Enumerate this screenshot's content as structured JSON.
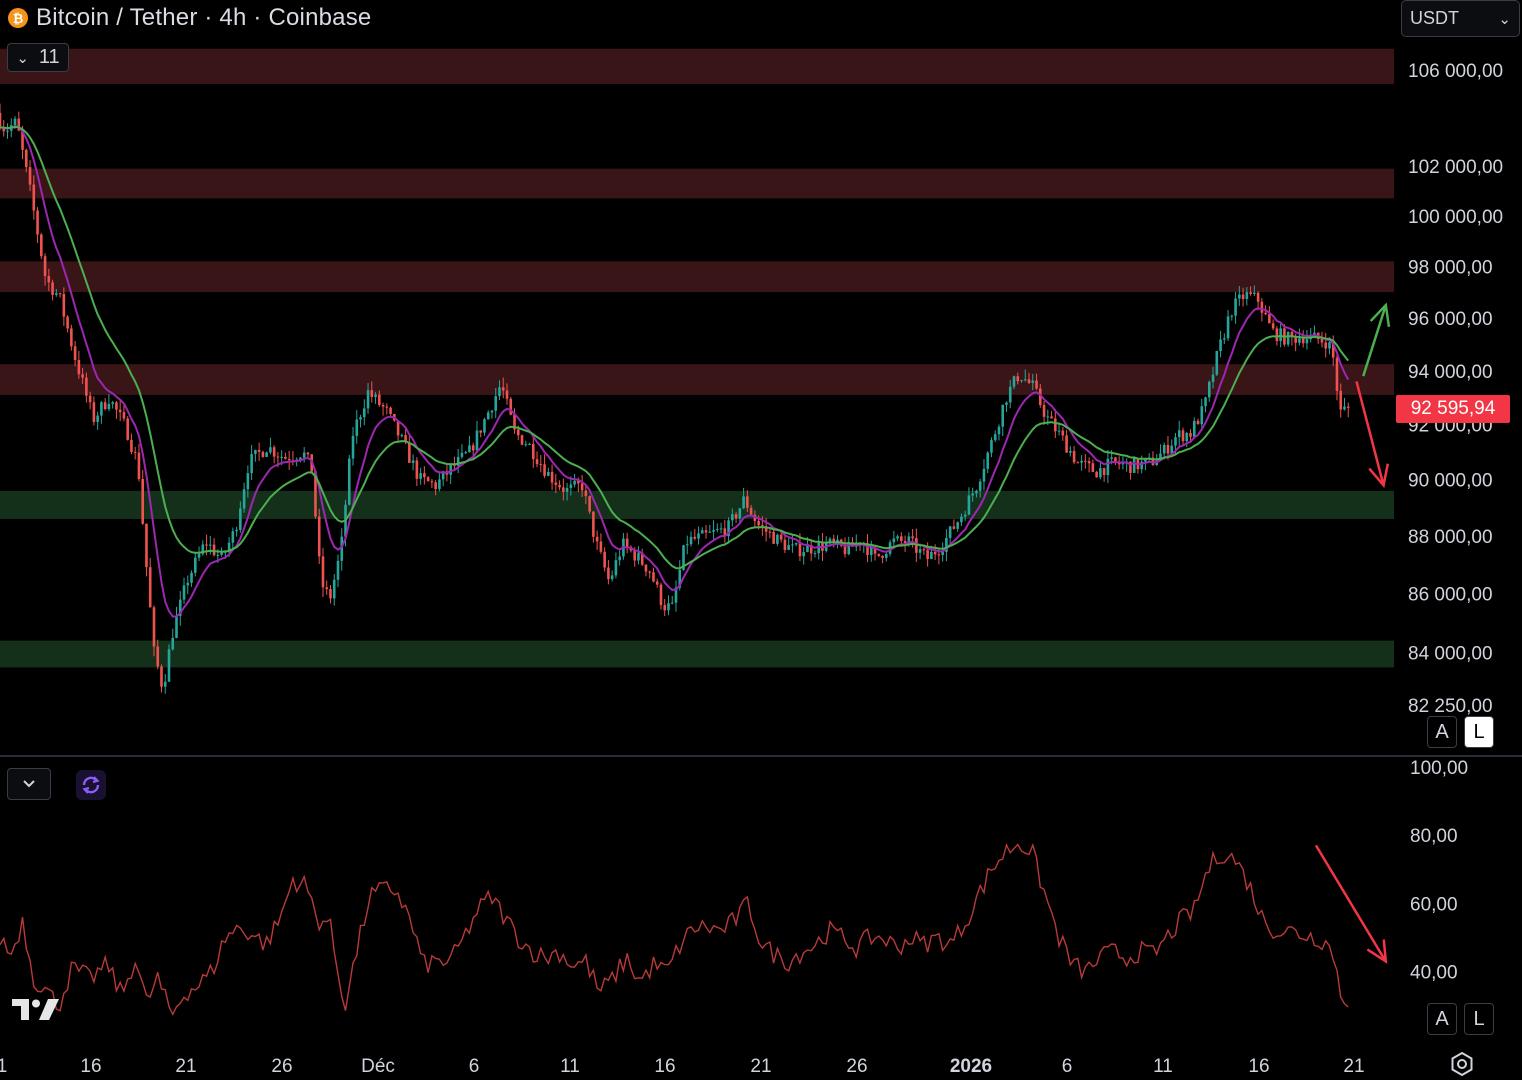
{
  "header": {
    "title": "Bitcoin / Tether · 4h · Coinbase",
    "collapse_count": "11",
    "currency": "USDT"
  },
  "colors": {
    "background": "#000000",
    "resistance_zone": "#3a1518",
    "support_zone": "#15301a",
    "candle_up": "#26a69a",
    "candle_down": "#ef5350",
    "ma_fast": "#9c27b0",
    "ma_slow": "#4caf50",
    "rsi_line": "#b83a3a",
    "arrow_up": "#4caf50",
    "arrow_down": "#f23645",
    "price_badge": "#f23645"
  },
  "price_axis": {
    "current_price_label": "92 595,94",
    "auto_label": "A",
    "log_label": "L"
  },
  "rsi_axis": {
    "auto_label": "A",
    "log_label": "L"
  },
  "chart_data": [
    {
      "type": "candlestick",
      "title": "Bitcoin / Tether · 4h · Coinbase",
      "y_scale": "log",
      "ylim": [
        80600,
        109000
      ],
      "y_ticks": [
        {
          "value": 106000,
          "label": "106 000,00"
        },
        {
          "value": 102000,
          "label": "102 000,00"
        },
        {
          "value": 100000,
          "label": "100 000,00"
        },
        {
          "value": 98000,
          "label": "98 000,00"
        },
        {
          "value": 96000,
          "label": "96 000,00"
        },
        {
          "value": 94000,
          "label": "94 000,00"
        },
        {
          "value": 92000,
          "label": "92 000,00"
        },
        {
          "value": 90000,
          "label": "90 000,00"
        },
        {
          "value": 88000,
          "label": "88 000,00"
        },
        {
          "value": 86000,
          "label": "86 000,00"
        },
        {
          "value": 84000,
          "label": "84 000,00"
        },
        {
          "value": 82250,
          "label": "82 250,00"
        }
      ],
      "x_ticks": [
        {
          "label": "1",
          "bold": false
        },
        {
          "label": "16",
          "bold": false
        },
        {
          "label": "21",
          "bold": false
        },
        {
          "label": "26",
          "bold": false
        },
        {
          "label": "Déc",
          "bold": false
        },
        {
          "label": "6",
          "bold": false
        },
        {
          "label": "11",
          "bold": false
        },
        {
          "label": "16",
          "bold": false
        },
        {
          "label": "21",
          "bold": false
        },
        {
          "label": "26",
          "bold": false
        },
        {
          "label": "2026",
          "bold": true
        },
        {
          "label": "6",
          "bold": false
        },
        {
          "label": "11",
          "bold": false
        },
        {
          "label": "16",
          "bold": false
        },
        {
          "label": "21",
          "bold": false
        }
      ],
      "current_price": 92595.94,
      "resistance_zones": [
        [
          105400,
          106900
        ],
        [
          100700,
          101900
        ],
        [
          97000,
          98200
        ],
        [
          93100,
          94250
        ]
      ],
      "support_zones": [
        [
          88600,
          89600
        ],
        [
          83500,
          84400
        ]
      ],
      "price_path": [
        [
          0,
          104200
        ],
        [
          0.4,
          103500
        ],
        [
          0.9,
          103800
        ],
        [
          1.5,
          101000
        ],
        [
          2.2,
          97500
        ],
        [
          2.8,
          96800
        ],
        [
          3.5,
          94500
        ],
        [
          4.3,
          92200
        ],
        [
          5.0,
          93000
        ],
        [
          5.8,
          91800
        ],
        [
          6.3,
          90500
        ],
        [
          6.6,
          87500
        ],
        [
          7.0,
          84000
        ],
        [
          7.4,
          82800
        ],
        [
          7.8,
          84600
        ],
        [
          8.5,
          86500
        ],
        [
          9.3,
          87800
        ],
        [
          10.0,
          87200
        ],
        [
          10.6,
          88200
        ],
        [
          11.2,
          90600
        ],
        [
          12.0,
          91200
        ],
        [
          12.8,
          90800
        ],
        [
          13.6,
          91000
        ],
        [
          14.0,
          90400
        ],
        [
          14.4,
          86400
        ],
        [
          14.8,
          85800
        ],
        [
          15.3,
          87500
        ],
        [
          15.8,
          91600
        ],
        [
          16.5,
          93200
        ],
        [
          17.3,
          92500
        ],
        [
          18.0,
          91400
        ],
        [
          18.8,
          90000
        ],
        [
          19.5,
          89800
        ],
        [
          20.2,
          90400
        ],
        [
          21.0,
          91000
        ],
        [
          21.8,
          92400
        ],
        [
          22.4,
          93500
        ],
        [
          23.0,
          91700
        ],
        [
          23.6,
          91300
        ],
        [
          24.5,
          90200
        ],
        [
          25.3,
          89600
        ],
        [
          26.0,
          89800
        ],
        [
          26.6,
          87800
        ],
        [
          27.2,
          86400
        ],
        [
          27.8,
          87700
        ],
        [
          28.4,
          87300
        ],
        [
          29.0,
          86800
        ],
        [
          29.6,
          85600
        ],
        [
          30.0,
          85500
        ],
        [
          30.6,
          87800
        ],
        [
          31.5,
          88000
        ],
        [
          32.5,
          88300
        ],
        [
          33.2,
          89300
        ],
        [
          33.8,
          88400
        ],
        [
          34.6,
          87900
        ],
        [
          35.4,
          87500
        ],
        [
          36.2,
          87600
        ],
        [
          37.0,
          87700
        ],
        [
          37.8,
          87500
        ],
        [
          38.4,
          87900
        ],
        [
          39.0,
          87200
        ],
        [
          39.8,
          87800
        ],
        [
          40.5,
          87800
        ],
        [
          41.3,
          87200
        ],
        [
          42.0,
          87700
        ],
        [
          42.8,
          88700
        ],
        [
          43.5,
          89800
        ],
        [
          44.2,
          91400
        ],
        [
          44.8,
          93000
        ],
        [
          45.4,
          93900
        ],
        [
          46.0,
          93400
        ],
        [
          46.6,
          92300
        ],
        [
          47.3,
          91500
        ],
        [
          48.0,
          90600
        ],
        [
          48.8,
          90300
        ],
        [
          49.6,
          90600
        ],
        [
          50.4,
          90500
        ],
        [
          51.2,
          90600
        ],
        [
          51.8,
          91000
        ],
        [
          52.4,
          91600
        ],
        [
          53.0,
          91700
        ],
        [
          53.6,
          92600
        ],
        [
          54.2,
          94600
        ],
        [
          54.8,
          96300
        ],
        [
          55.4,
          96900
        ],
        [
          56.0,
          96700
        ],
        [
          56.6,
          95500
        ],
        [
          57.3,
          95200
        ],
        [
          58.0,
          95300
        ],
        [
          58.6,
          95200
        ],
        [
          59.1,
          95100
        ],
        [
          59.4,
          94300
        ],
        [
          59.6,
          92400
        ],
        [
          59.9,
          92600
        ]
      ],
      "arrows": [
        {
          "color": "green",
          "from": [
            60.5,
            93800
          ],
          "to": [
            61.5,
            96500
          ]
        },
        {
          "color": "red",
          "from": [
            60.2,
            93600
          ],
          "to": [
            61.4,
            89800
          ]
        }
      ],
      "moving_averages": [
        {
          "color": "#9c27b0",
          "period": "fast"
        },
        {
          "color": "#4caf50",
          "period": "slow"
        }
      ]
    },
    {
      "type": "line",
      "y_ticks": [
        {
          "value": 100,
          "label": "100,00"
        },
        {
          "value": 80,
          "label": "80,00"
        },
        {
          "value": 60,
          "label": "60,00"
        },
        {
          "value": 40,
          "label": "40,00"
        }
      ],
      "ylim": [
        20,
        102
      ],
      "values_path": [
        [
          0,
          50
        ],
        [
          0.5,
          45
        ],
        [
          1.0,
          55
        ],
        [
          1.5,
          38
        ],
        [
          2.0,
          35
        ],
        [
          2.6,
          30
        ],
        [
          3.2,
          41
        ],
        [
          4.0,
          38
        ],
        [
          4.8,
          42
        ],
        [
          5.4,
          33
        ],
        [
          6.0,
          44
        ],
        [
          6.5,
          31
        ],
        [
          7.0,
          38
        ],
        [
          7.6,
          27
        ],
        [
          8.2,
          34
        ],
        [
          8.8,
          36
        ],
        [
          9.4,
          40
        ],
        [
          10.0,
          50
        ],
        [
          10.6,
          53
        ],
        [
          11.2,
          51
        ],
        [
          11.8,
          48
        ],
        [
          12.4,
          55
        ],
        [
          13.0,
          67
        ],
        [
          13.6,
          65
        ],
        [
          14.1,
          55
        ],
        [
          14.6,
          55
        ],
        [
          15.0,
          40
        ],
        [
          15.3,
          30
        ],
        [
          15.8,
          45
        ],
        [
          16.4,
          62
        ],
        [
          17.0,
          64
        ],
        [
          17.6,
          64
        ],
        [
          18.2,
          55
        ],
        [
          18.8,
          42
        ],
        [
          19.4,
          43
        ],
        [
          20.0,
          43
        ],
        [
          20.6,
          50
        ],
        [
          21.2,
          58
        ],
        [
          21.8,
          62
        ],
        [
          22.4,
          56
        ],
        [
          23.0,
          50
        ],
        [
          23.6,
          46
        ],
        [
          24.2,
          44
        ],
        [
          24.8,
          46
        ],
        [
          25.4,
          42
        ],
        [
          26.0,
          43
        ],
        [
          26.6,
          34
        ],
        [
          27.2,
          38
        ],
        [
          27.8,
          44
        ],
        [
          28.4,
          37
        ],
        [
          29.0,
          42
        ],
        [
          29.6,
          40
        ],
        [
          30.2,
          48
        ],
        [
          30.8,
          53
        ],
        [
          31.4,
          53
        ],
        [
          32.0,
          52
        ],
        [
          32.6,
          55
        ],
        [
          33.2,
          60
        ],
        [
          33.8,
          48
        ],
        [
          34.4,
          45
        ],
        [
          35.0,
          43
        ],
        [
          35.6,
          46
        ],
        [
          36.2,
          48
        ],
        [
          36.8,
          52
        ],
        [
          37.4,
          50
        ],
        [
          38.0,
          47
        ],
        [
          38.6,
          50
        ],
        [
          39.2,
          50
        ],
        [
          39.8,
          47
        ],
        [
          40.4,
          50
        ],
        [
          41.0,
          48
        ],
        [
          41.6,
          50
        ],
        [
          42.2,
          48
        ],
        [
          42.8,
          54
        ],
        [
          43.4,
          62
        ],
        [
          44.0,
          70
        ],
        [
          44.6,
          75
        ],
        [
          45.2,
          78
        ],
        [
          45.8,
          75
        ],
        [
          46.4,
          62
        ],
        [
          47.0,
          50
        ],
        [
          47.6,
          42
        ],
        [
          48.2,
          40
        ],
        [
          48.8,
          44
        ],
        [
          49.4,
          46
        ],
        [
          50.0,
          44
        ],
        [
          50.6,
          46
        ],
        [
          51.2,
          45
        ],
        [
          51.8,
          50
        ],
        [
          52.4,
          55
        ],
        [
          53.0,
          58
        ],
        [
          53.6,
          70
        ],
        [
          54.2,
          75
        ],
        [
          54.8,
          73
        ],
        [
          55.4,
          66
        ],
        [
          56.0,
          56
        ],
        [
          56.6,
          52
        ],
        [
          57.2,
          52
        ],
        [
          57.8,
          51
        ],
        [
          58.4,
          50
        ],
        [
          58.8,
          49
        ],
        [
          59.2,
          45
        ],
        [
          59.5,
          33
        ],
        [
          59.8,
          32
        ]
      ],
      "arrows": [
        {
          "color": "red",
          "from": [
            58.4,
            77
          ],
          "to": [
            61.5,
            43
          ]
        }
      ]
    }
  ]
}
